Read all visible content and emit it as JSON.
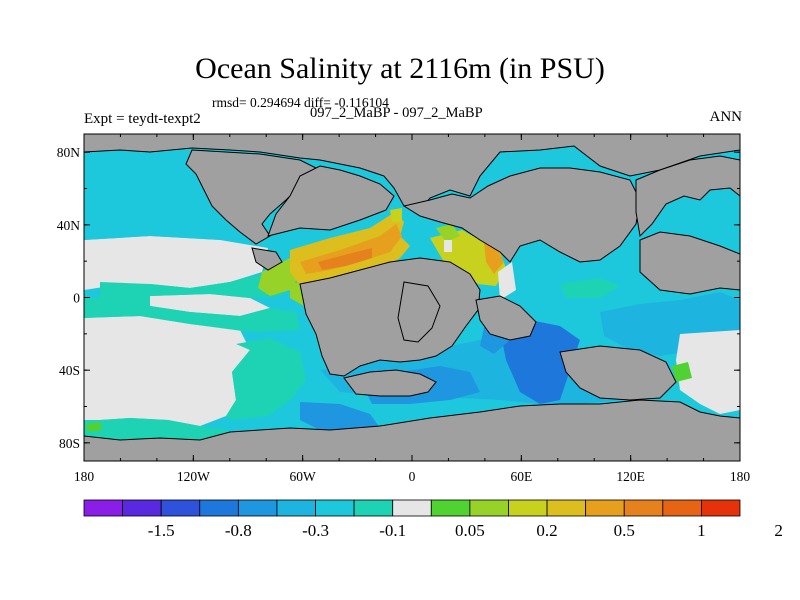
{
  "title": "Ocean Salinity at 2116m (in PSU)",
  "stats": "rmsd= 0.294694 diff= -0.116104",
  "expt": "Expt = teydt-texpt2",
  "case_title": "097_2_MaBP - 097_2_MaBP",
  "season": "ANN",
  "lat_labels": [
    "80N",
    "40N",
    "0",
    "40S",
    "80S"
  ],
  "lon_labels": [
    "180",
    "120W",
    "60W",
    "0",
    "60E",
    "120E",
    "180"
  ],
  "colorbar": {
    "colors": [
      "#8a1ee6",
      "#5a28e0",
      "#2e52dc",
      "#1e78dc",
      "#1e96e0",
      "#1eb4e0",
      "#1ec8dc",
      "#1ed2b4",
      "#e6e6e6",
      "#50d232",
      "#96d228",
      "#c8d21e",
      "#dcbe1e",
      "#e6a01e",
      "#e6821e",
      "#e66414",
      "#e6320a"
    ],
    "labels": [
      "-1.5",
      "-0.8",
      "-0.3",
      "-0.1",
      "0.05",
      "0.2",
      "0.5",
      "1",
      "2"
    ]
  },
  "colors": {
    "land": "#a0a0a0",
    "coastline": "#000000"
  }
}
